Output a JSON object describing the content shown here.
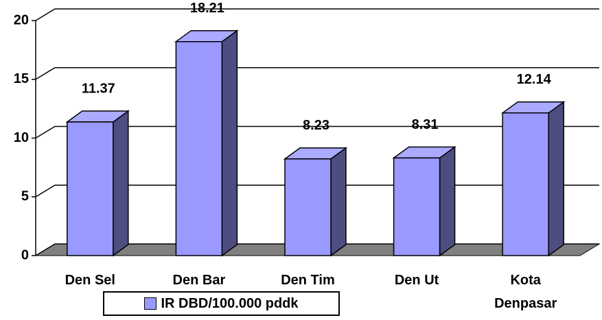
{
  "chart_data": {
    "type": "bar3d",
    "categories": [
      "Den Sel",
      "Den Bar",
      "Den Tim",
      "Den Ut",
      "Kota Denpasar"
    ],
    "series": [
      {
        "name": "IR DBD/100.000 pddk",
        "color": "#9999ff",
        "values": [
          11.37,
          18.21,
          8.23,
          8.31,
          12.14
        ]
      }
    ],
    "ylim": [
      0,
      20
    ],
    "yticks": [
      0,
      5,
      10,
      15,
      20
    ],
    "grid": true,
    "legend": "bottom"
  }
}
